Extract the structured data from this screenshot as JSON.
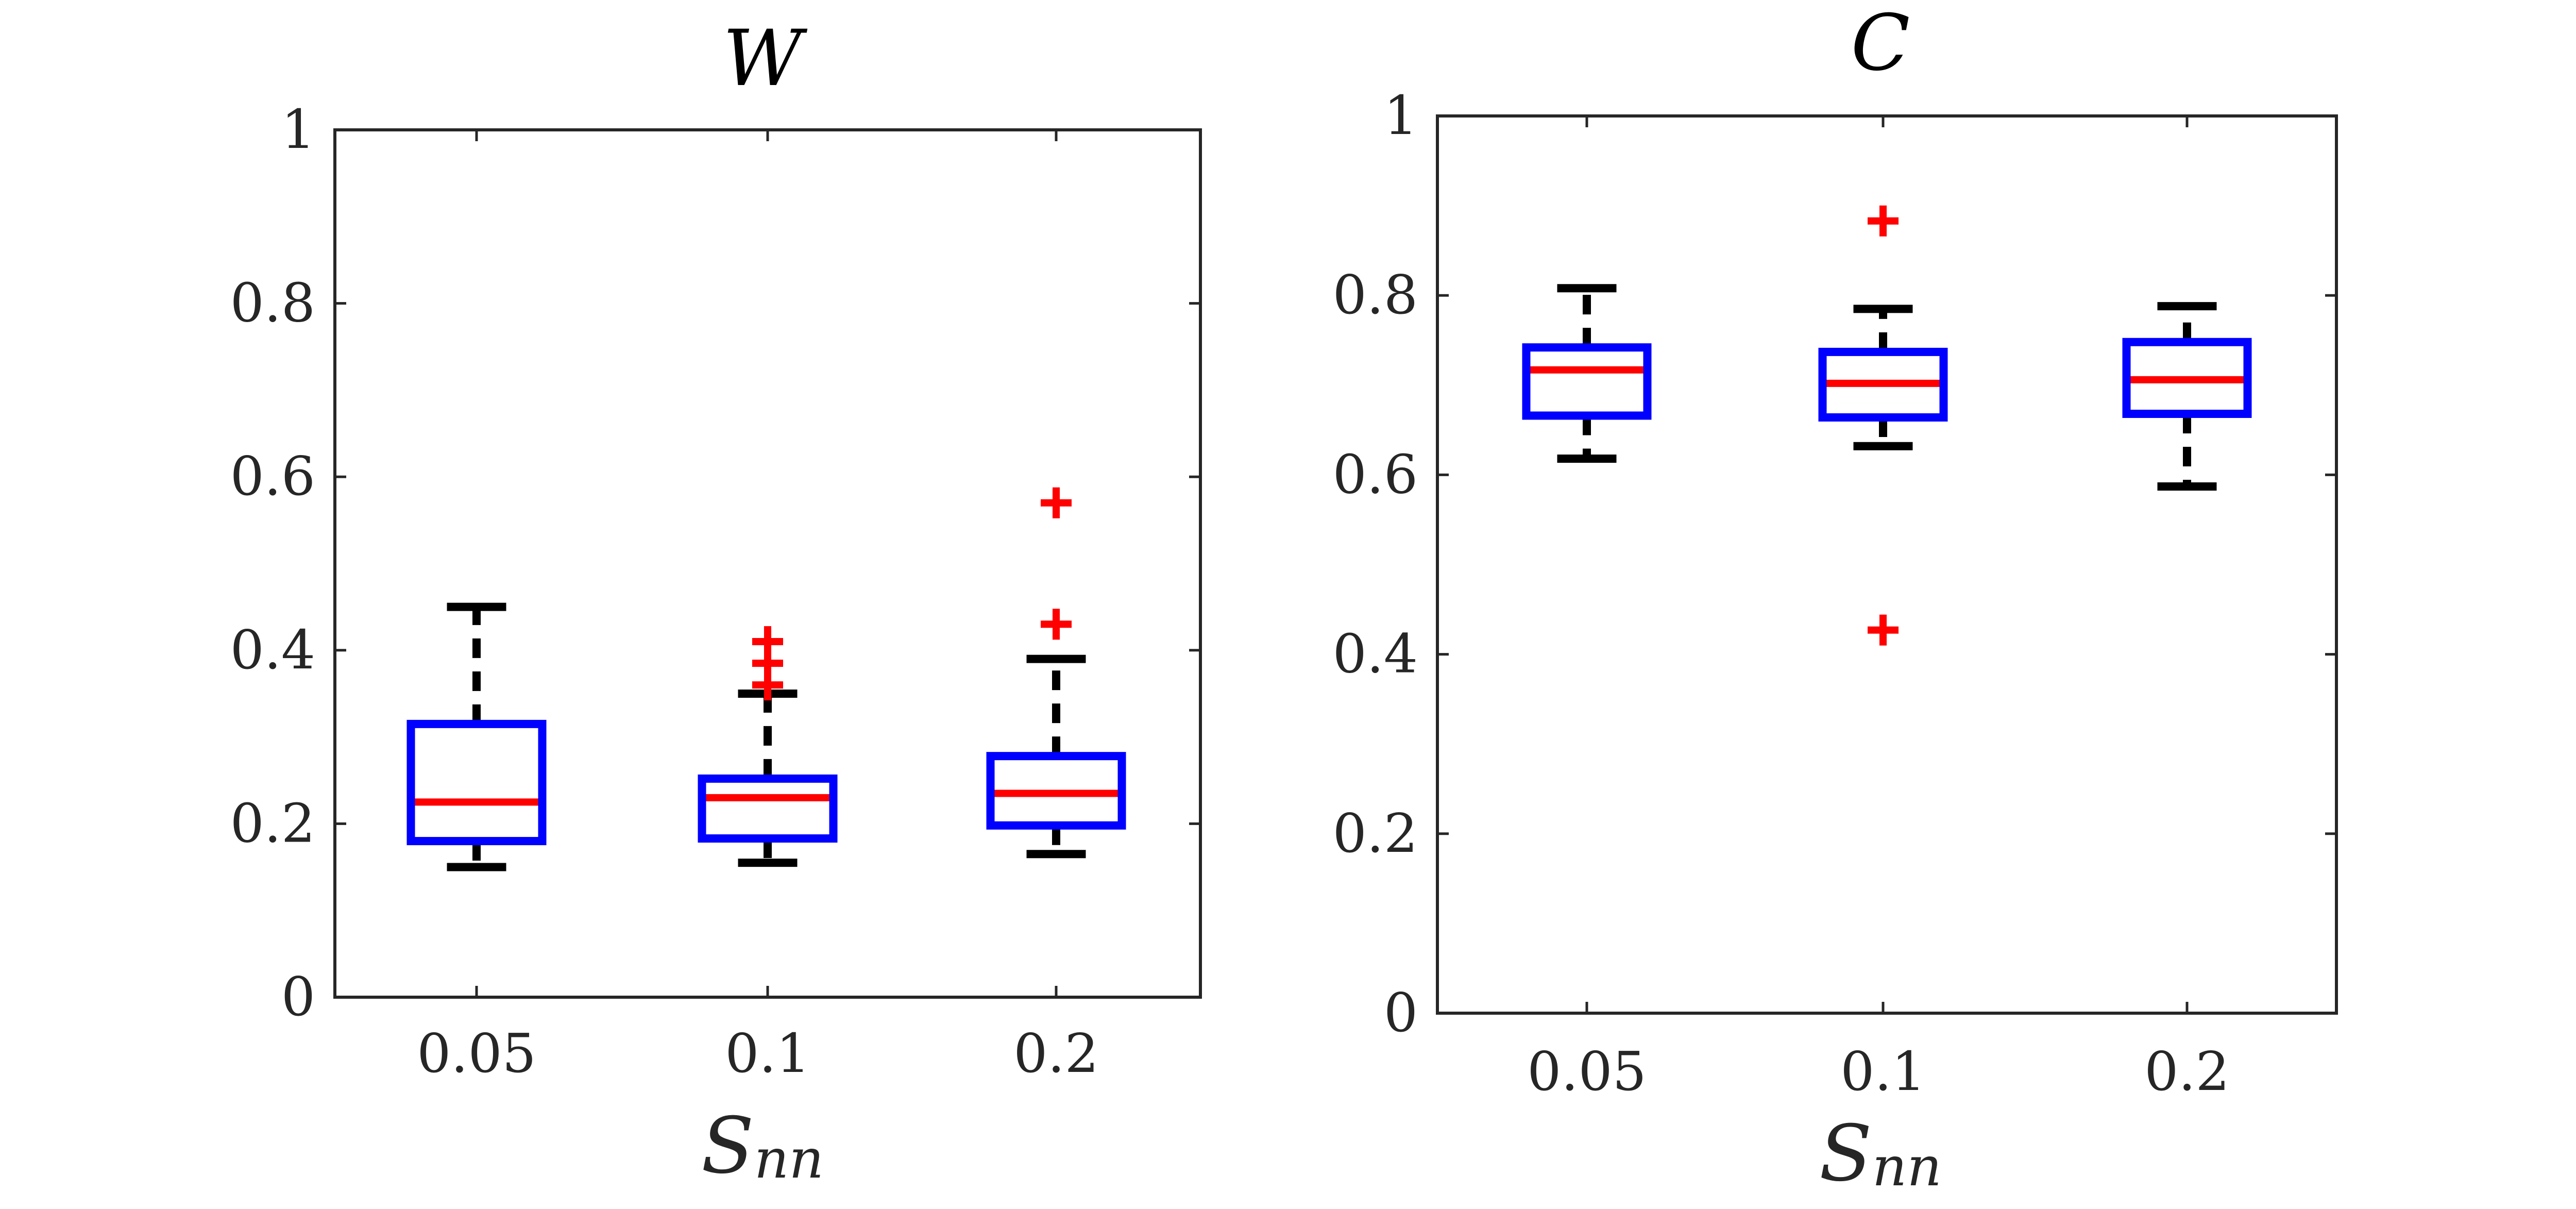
{
  "colors": {
    "box": "#0000ff",
    "median": "#ff0000",
    "whisker": "#000000",
    "outlier": "#ff0000",
    "axis": "#262626"
  },
  "chart_data": [
    {
      "type": "boxplot",
      "title": "W",
      "xlabel": "S",
      "xlabel_sub": "nn",
      "ylabel": "",
      "categories": [
        "0.05",
        "0.1",
        "0.2"
      ],
      "ylim": [
        0,
        1
      ],
      "yticks": [
        0,
        0.2,
        0.4,
        0.6,
        0.8,
        1
      ],
      "ytick_labels": [
        "0",
        "0.2",
        "0.4",
        "0.6",
        "0.8",
        "1"
      ],
      "boxes": [
        {
          "category": "0.05",
          "lower_whisker": 0.15,
          "q1": 0.18,
          "median": 0.225,
          "q3": 0.315,
          "upper_whisker": 0.45,
          "outliers": []
        },
        {
          "category": "0.1",
          "lower_whisker": 0.155,
          "q1": 0.183,
          "median": 0.23,
          "q3": 0.252,
          "upper_whisker": 0.35,
          "outliers": [
            0.36,
            0.385,
            0.41
          ]
        },
        {
          "category": "0.2",
          "lower_whisker": 0.165,
          "q1": 0.198,
          "median": 0.235,
          "q3": 0.278,
          "upper_whisker": 0.39,
          "outliers": [
            0.43,
            0.57
          ]
        }
      ]
    },
    {
      "type": "boxplot",
      "title": "C",
      "xlabel": "S",
      "xlabel_sub": "nn",
      "ylabel": "",
      "categories": [
        "0.05",
        "0.1",
        "0.2"
      ],
      "ylim": [
        0,
        1
      ],
      "yticks": [
        0,
        0.2,
        0.4,
        0.6,
        0.8,
        1
      ],
      "ytick_labels": [
        "0",
        "0.2",
        "0.4",
        "0.6",
        "0.8",
        "1"
      ],
      "boxes": [
        {
          "category": "0.05",
          "lower_whisker": 0.618,
          "q1": 0.666,
          "median": 0.717,
          "q3": 0.742,
          "upper_whisker": 0.808,
          "outliers": []
        },
        {
          "category": "0.1",
          "lower_whisker": 0.632,
          "q1": 0.664,
          "median": 0.702,
          "q3": 0.737,
          "upper_whisker": 0.785,
          "outliers": [
            0.427,
            0.883
          ]
        },
        {
          "category": "0.2",
          "lower_whisker": 0.587,
          "q1": 0.668,
          "median": 0.706,
          "q3": 0.748,
          "upper_whisker": 0.788,
          "outliers": []
        }
      ]
    }
  ]
}
